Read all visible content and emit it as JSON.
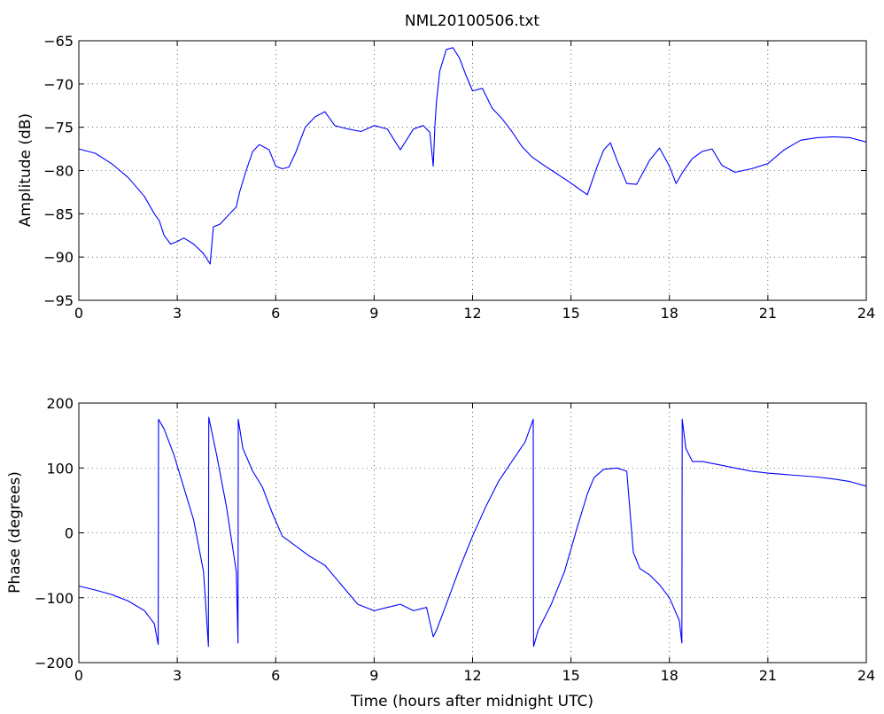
{
  "chart_data": [
    {
      "type": "line",
      "title": "NML20100506.txt",
      "xlabel": "",
      "ylabel": "Amplitude (dB)",
      "xlim": [
        0,
        24
      ],
      "ylim": [
        -95,
        -65
      ],
      "xticks": [
        0,
        3,
        6,
        9,
        12,
        15,
        18,
        21,
        24
      ],
      "yticks": [
        -95,
        -90,
        -85,
        -80,
        -75,
        -70,
        -65
      ],
      "xtick_labels": [
        "0",
        "3",
        "6",
        "9",
        "12",
        "15",
        "18",
        "21",
        "24"
      ],
      "ytick_labels": [
        "−95",
        "−90",
        "−85",
        "−80",
        "−75",
        "−70",
        "−65"
      ],
      "grid": true,
      "color": "#0000ff",
      "series": [
        {
          "x": [
            0,
            0.5,
            1,
            1.5,
            2,
            2.3,
            2.45,
            2.6,
            2.8,
            3.0,
            3.2,
            3.5,
            3.8,
            4.0,
            4.1,
            4.3,
            4.6,
            4.8,
            4.9,
            5.1,
            5.3,
            5.5,
            5.8,
            6.0,
            6.2,
            6.4,
            6.6,
            6.9,
            7.2,
            7.5,
            7.8,
            8.2,
            8.6,
            9.0,
            9.4,
            9.8,
            10.2,
            10.5,
            10.7,
            10.8,
            10.85,
            10.9,
            11.0,
            11.2,
            11.4,
            11.6,
            11.8,
            12.0,
            12.3,
            12.6,
            12.9,
            13.2,
            13.5,
            13.8,
            14.1,
            14.5,
            14.9,
            15.2,
            15.5,
            15.8,
            16.0,
            16.2,
            16.4,
            16.7,
            17.0,
            17.4,
            17.7,
            18.0,
            18.2,
            18.4,
            18.7,
            19.0,
            19.3,
            19.6,
            20.0,
            20.5,
            21.0,
            21.5,
            22.0,
            22.5,
            23.0,
            23.5,
            24.0
          ],
          "y": [
            -77.5,
            -78.0,
            -79.2,
            -80.8,
            -83.0,
            -85.0,
            -85.8,
            -87.5,
            -88.5,
            -88.2,
            -87.8,
            -88.5,
            -89.6,
            -90.8,
            -86.5,
            -86.2,
            -85.0,
            -84.2,
            -82.5,
            -80.0,
            -77.8,
            -77.0,
            -77.6,
            -79.5,
            -79.8,
            -79.6,
            -78.0,
            -75.0,
            -73.8,
            -73.2,
            -74.8,
            -75.2,
            -75.5,
            -74.8,
            -75.2,
            -77.6,
            -75.2,
            -74.8,
            -75.6,
            -79.5,
            -75.0,
            -72.0,
            -68.5,
            -66.0,
            -65.8,
            -67.0,
            -69.0,
            -70.8,
            -70.5,
            -72.8,
            -74.0,
            -75.5,
            -77.2,
            -78.4,
            -79.2,
            -80.2,
            -81.2,
            -82.0,
            -82.8,
            -79.5,
            -77.6,
            -76.8,
            -78.8,
            -81.5,
            -81.6,
            -78.8,
            -77.4,
            -79.5,
            -81.5,
            -80.2,
            -78.6,
            -77.8,
            -77.5,
            -79.4,
            -80.2,
            -79.8,
            -79.2,
            -77.6,
            -76.5,
            -76.2,
            -76.1,
            -76.2,
            -76.7
          ]
        }
      ]
    },
    {
      "type": "line",
      "title": "",
      "xlabel": "Time (hours after midnight UTC)",
      "ylabel": "Phase (degrees)",
      "xlim": [
        0,
        24
      ],
      "ylim": [
        -200,
        200
      ],
      "xticks": [
        0,
        3,
        6,
        9,
        12,
        15,
        18,
        21,
        24
      ],
      "yticks": [
        -200,
        -100,
        0,
        100,
        200
      ],
      "xtick_labels": [
        "0",
        "3",
        "6",
        "9",
        "12",
        "15",
        "18",
        "21",
        "24"
      ],
      "ytick_labels": [
        "−200",
        "−100",
        "0",
        "100",
        "200"
      ],
      "grid": true,
      "color": "#0000ff",
      "series": [
        {
          "x": [
            0,
            0.5,
            1.0,
            1.5,
            2.0,
            2.3,
            2.42,
            2.43,
            2.6,
            2.9,
            3.2,
            3.5,
            3.8,
            3.95,
            3.96,
            4.2,
            4.5,
            4.8,
            4.85,
            4.86,
            5.0,
            5.3,
            5.6,
            5.9,
            6.2,
            6.6,
            7.0,
            7.5,
            8.0,
            8.5,
            9.0,
            9.4,
            9.8,
            10.2,
            10.6,
            10.8,
            10.9,
            11.2,
            11.6,
            12.0,
            12.4,
            12.8,
            13.2,
            13.6,
            13.85,
            13.86,
            14.0,
            14.4,
            14.8,
            15.2,
            15.5,
            15.7,
            16.0,
            16.4,
            16.7,
            16.9,
            17.1,
            17.4,
            17.7,
            18.0,
            18.3,
            18.38,
            18.39,
            18.5,
            18.7,
            19.0,
            19.5,
            20.0,
            20.5,
            21.0,
            21.5,
            22.0,
            22.5,
            23.0,
            23.5,
            24.0
          ],
          "y": [
            -82,
            -88,
            -95,
            -105,
            -120,
            -140,
            -172,
            175,
            160,
            120,
            70,
            20,
            -60,
            -175,
            178,
            120,
            40,
            -60,
            -170,
            175,
            130,
            95,
            70,
            30,
            -5,
            -20,
            -35,
            -50,
            -80,
            -110,
            -120,
            -115,
            -110,
            -120,
            -115,
            -160,
            -150,
            -110,
            -55,
            -5,
            40,
            80,
            110,
            140,
            175,
            -175,
            -150,
            -110,
            -60,
            10,
            60,
            85,
            98,
            100,
            95,
            -30,
            -55,
            -65,
            -80,
            -100,
            -135,
            -170,
            175,
            130,
            110,
            110,
            105,
            100,
            95,
            92,
            90,
            88,
            86,
            83,
            79,
            72
          ]
        }
      ]
    }
  ]
}
